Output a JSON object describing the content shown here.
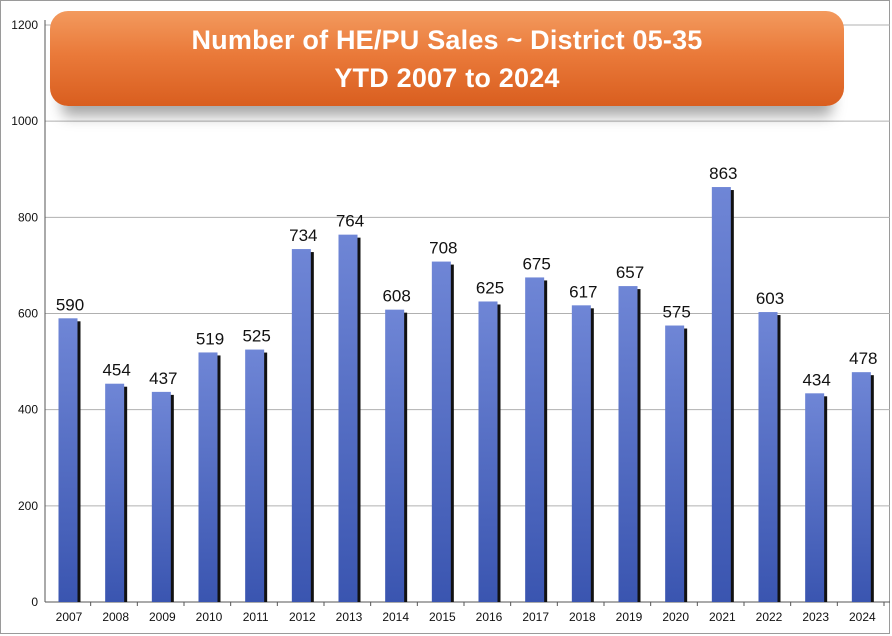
{
  "chart_data": {
    "type": "bar",
    "title": "Number of HE/PU Sales ~ District 05-35",
    "subtitle": "YTD 2007 to 2024",
    "xlabel": "",
    "ylabel": "",
    "ylim": [
      0,
      1200
    ],
    "yticks": [
      0,
      200,
      400,
      600,
      800,
      1000,
      1200
    ],
    "grid": true,
    "categories": [
      "2007",
      "2008",
      "2009",
      "2010",
      "2011",
      "2012",
      "2013",
      "2014",
      "2015",
      "2016",
      "2017",
      "2018",
      "2019",
      "2020",
      "2021",
      "2022",
      "2023",
      "2024"
    ],
    "values": [
      590,
      454,
      437,
      519,
      525,
      734,
      764,
      608,
      708,
      625,
      675,
      617,
      657,
      575,
      863,
      603,
      434,
      478
    ],
    "colors": {
      "bar_top": "#6f86d6",
      "bar_bottom": "#3a55b0",
      "shadow": "#111111",
      "grid": "#b0b0b0"
    }
  }
}
